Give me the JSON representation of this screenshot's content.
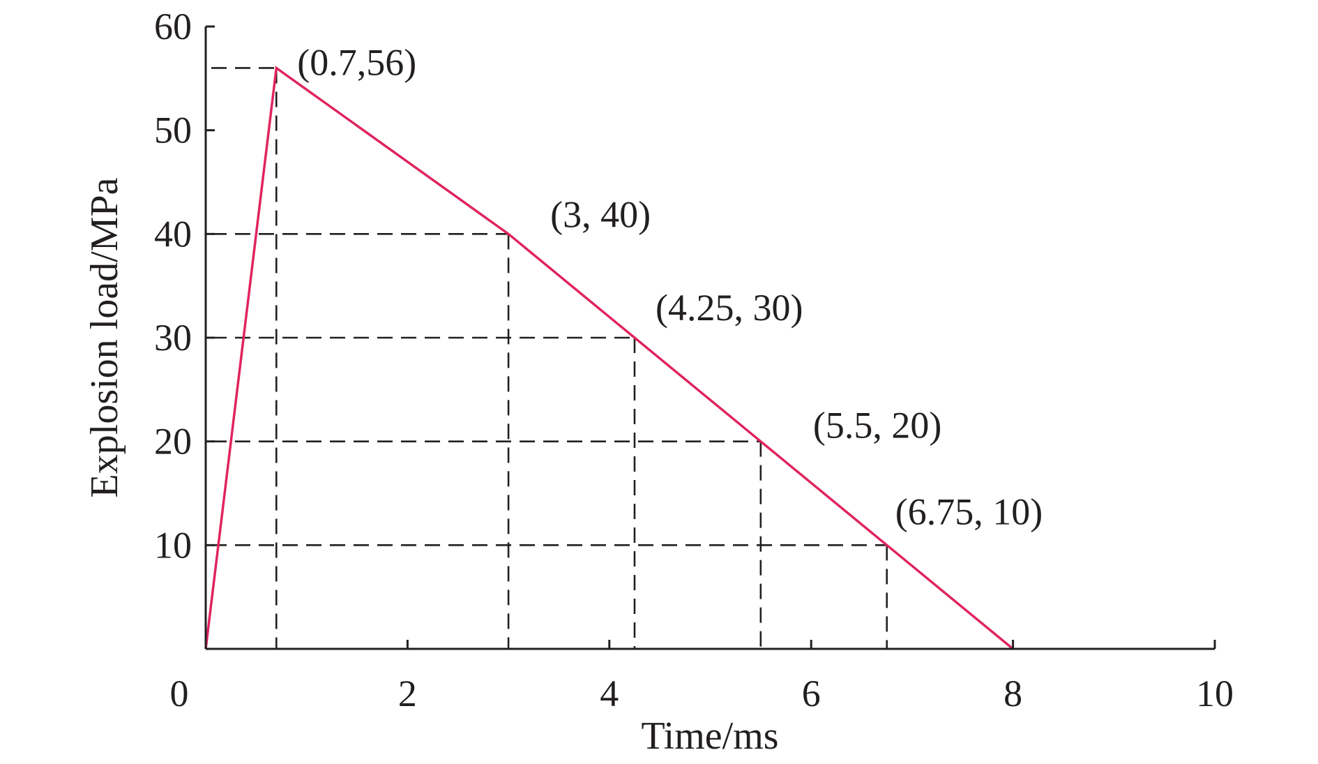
{
  "chart_data": {
    "type": "line",
    "title": "",
    "xlabel": "Time/ms",
    "ylabel": "Explosion load/MPa",
    "xlim": [
      0,
      10
    ],
    "ylim": [
      0,
      60
    ],
    "x_ticks": [
      0,
      2,
      4,
      6,
      8,
      10
    ],
    "y_ticks": [
      10,
      20,
      30,
      40,
      50,
      60
    ],
    "x_tick_labels": [
      "0",
      "2",
      "4",
      "6",
      "8",
      "10"
    ],
    "y_tick_labels": [
      "10",
      "20",
      "30",
      "40",
      "50",
      "60"
    ],
    "grid": false,
    "series": [
      {
        "color": "#e0245e",
        "points": [
          [
            0,
            0
          ],
          [
            0.7,
            56
          ],
          [
            3,
            40
          ],
          [
            4.25,
            30
          ],
          [
            5.5,
            20
          ],
          [
            6.75,
            10
          ],
          [
            8,
            0
          ]
        ]
      }
    ],
    "reference_points": [
      {
        "x": 0.7,
        "y": 56,
        "label": "(0.7,56)"
      },
      {
        "x": 3,
        "y": 40,
        "label": "(3, 40)"
      },
      {
        "x": 4.25,
        "y": 30,
        "label": "(4.25, 30)"
      },
      {
        "x": 5.5,
        "y": 20,
        "label": "(5.5, 20)"
      },
      {
        "x": 6.75,
        "y": 10,
        "label": "(6.75, 10)"
      }
    ],
    "guide_line_style": "dashed"
  }
}
